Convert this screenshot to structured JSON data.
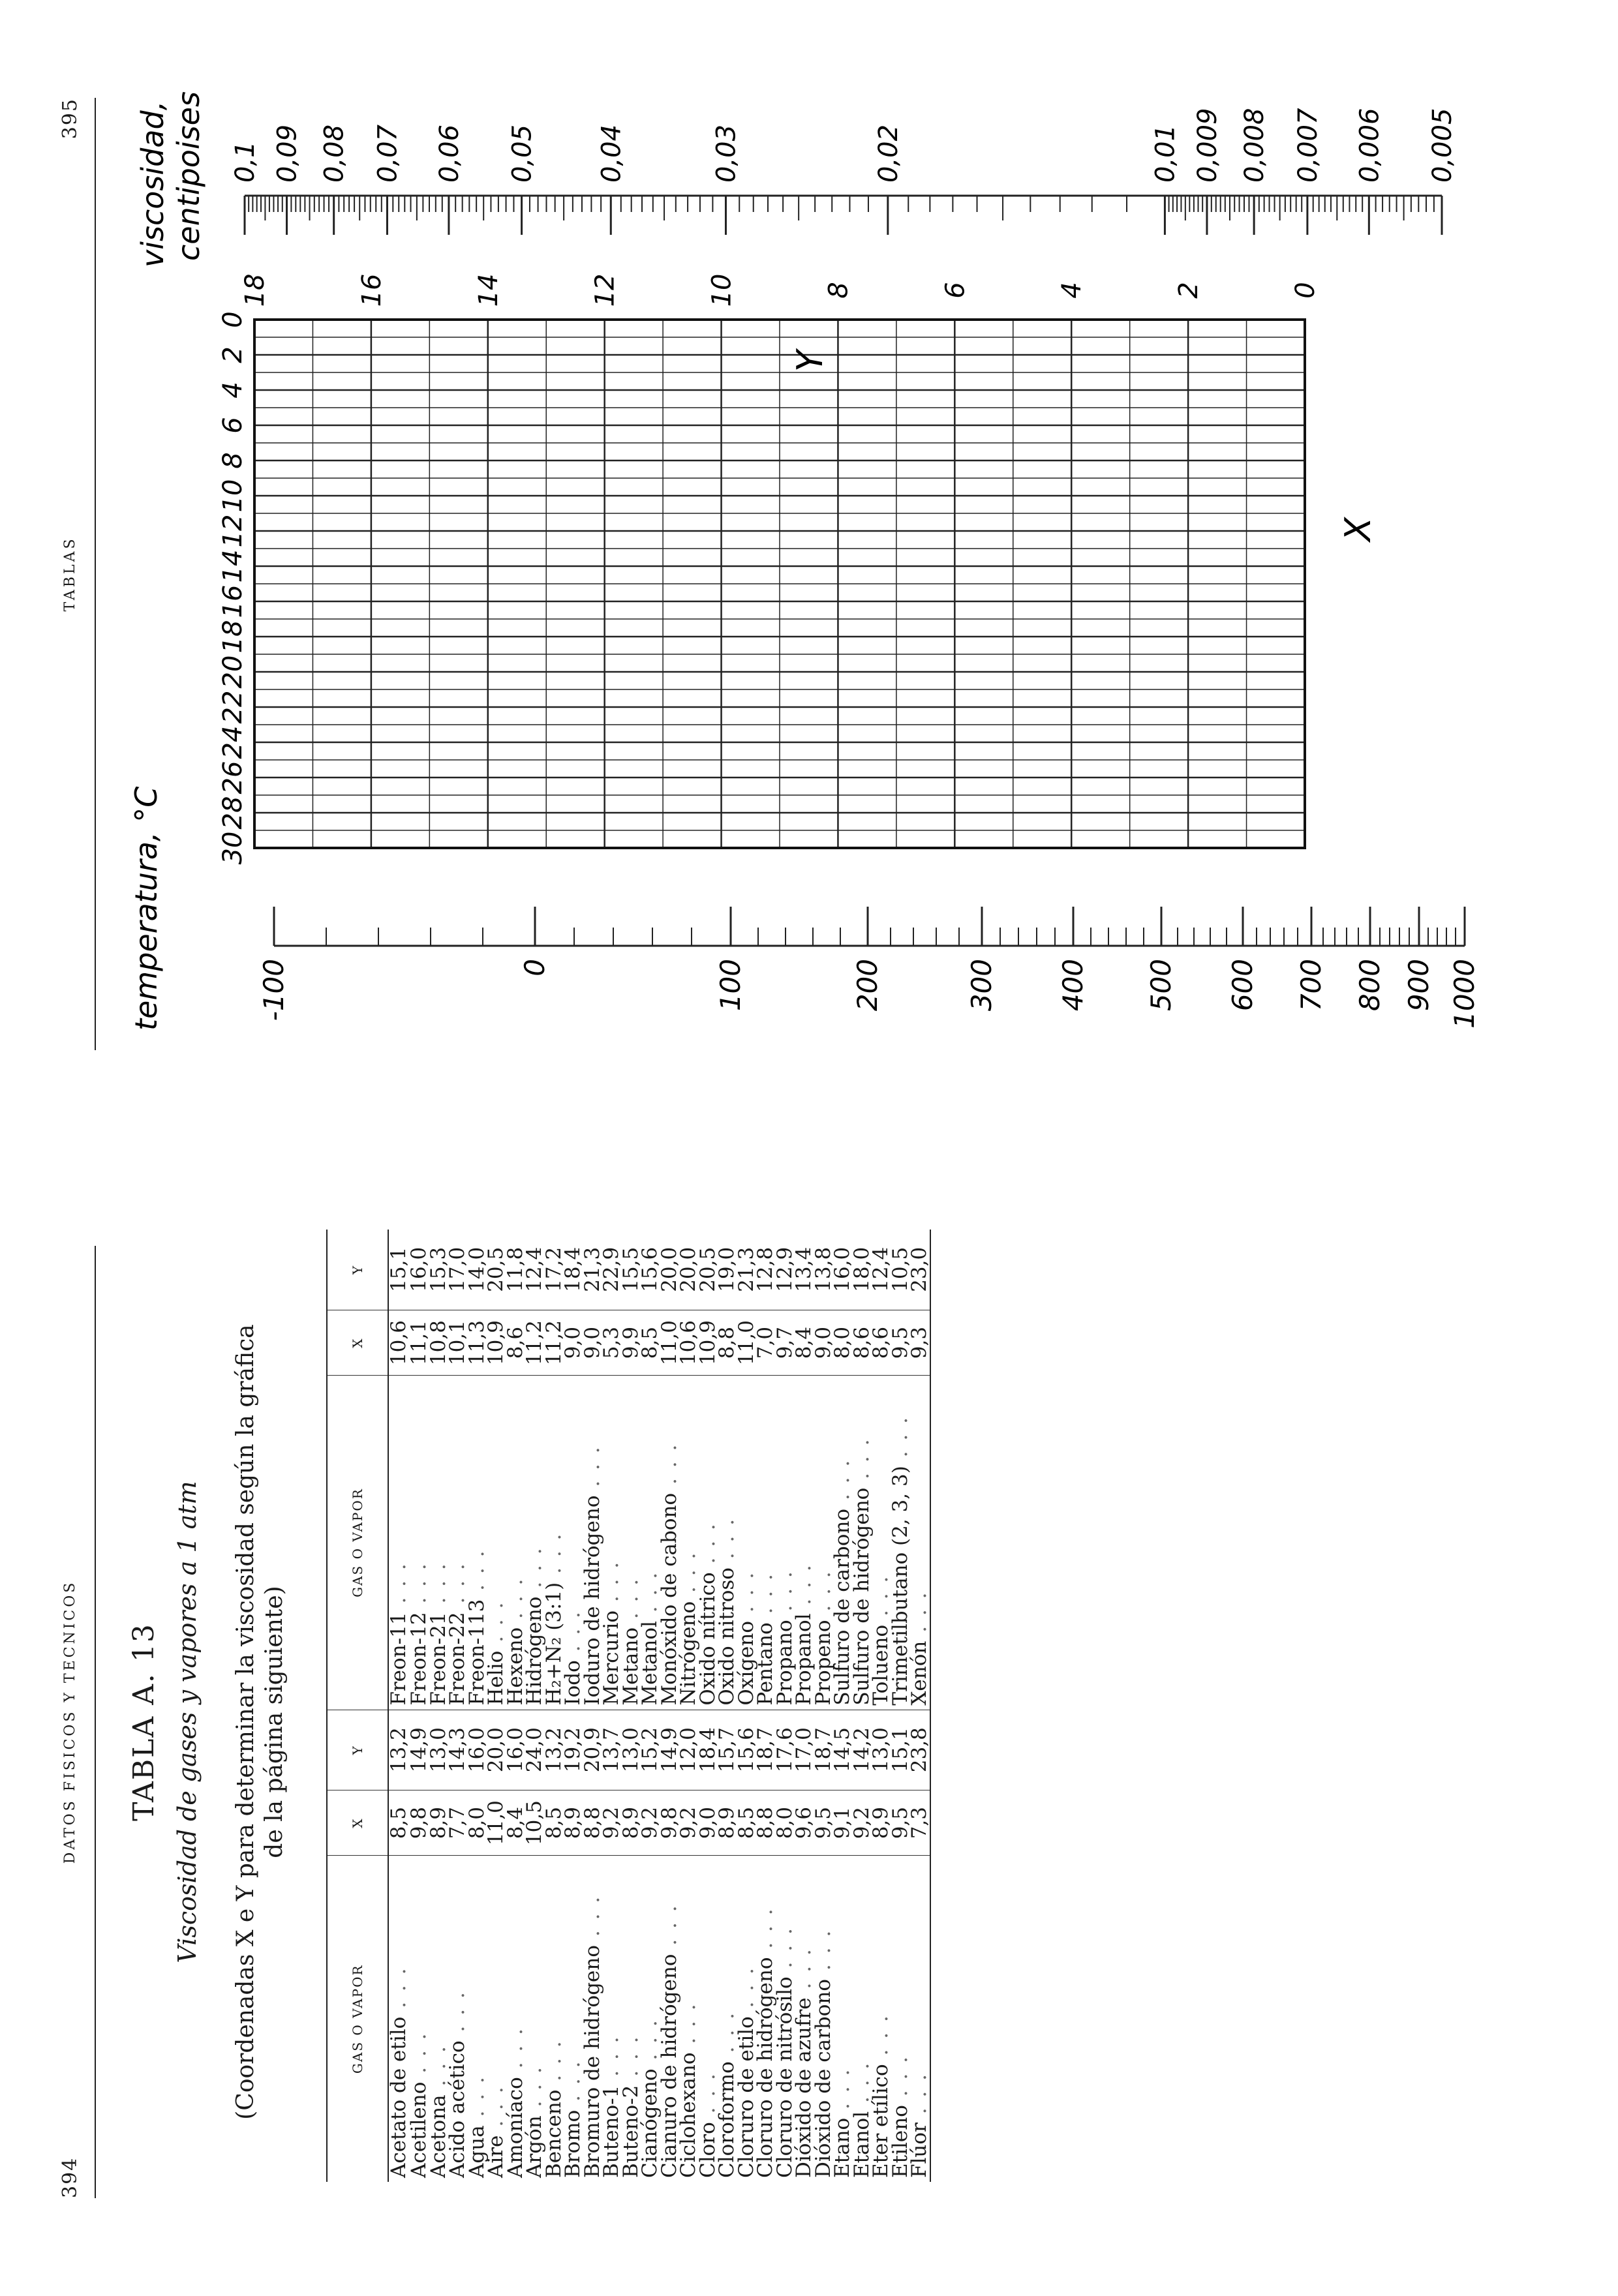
{
  "right_page": {
    "page_number": "395",
    "running_title": "TABLAS",
    "nomogram": {
      "temperature_axis": {
        "label": "temperatura, °C",
        "ticks": [
          "-100",
          "0",
          "100",
          "200",
          "300",
          "400",
          "500",
          "600",
          "700",
          "800",
          "900",
          "1000"
        ]
      },
      "viscosity_axis": {
        "label_line1": "viscosidad,",
        "label_line2": "centipoises",
        "ticks": [
          "0,1",
          "0,09",
          "0,08",
          "0,07",
          "0,06",
          "0,05",
          "0,04",
          "0,03",
          "0,02",
          "0,01",
          "0,009",
          "0,008",
          "0,007",
          "0,006",
          "0,005"
        ]
      },
      "grid": {
        "x_label": "X",
        "y_label": "Y",
        "x_ticks": [
          "0",
          "2",
          "4",
          "6",
          "8",
          "10",
          "12",
          "14",
          "16",
          "18"
        ],
        "y_ticks": [
          "0",
          "2",
          "4",
          "6",
          "8",
          "10",
          "12",
          "14",
          "16",
          "18",
          "20",
          "22",
          "24",
          "26",
          "28",
          "30"
        ]
      }
    }
  },
  "left_page": {
    "page_number": "394",
    "running_title": "DATOS FISICOS Y TECNICOS",
    "table_title": "TABLA A. 13",
    "table_subtitle": "Viscosidad de gases y vapores a 1 atm",
    "table_note_line1": "(Coordenadas X e Y para determinar la viscosidad según la gráfica",
    "table_note_line2": "de la página siguiente)",
    "headers": {
      "name": "GAS O VAPOR",
      "x": "X",
      "y": "Y"
    },
    "rows": [
      {
        "a": "Acetato de etilo",
        "ax": "8,5",
        "ay": "13,2",
        "b": "Freon-11",
        "bx": "10,6",
        "by": "15,1"
      },
      {
        "a": "Acetileno",
        "ax": "9,8",
        "ay": "14,9",
        "b": "Freon-12",
        "bx": "11,1",
        "by": "16,0"
      },
      {
        "a": "Acetona",
        "ax": "8,9",
        "ay": "13,0",
        "b": "Freon-21",
        "bx": "10,8",
        "by": "15,3"
      },
      {
        "a": "Acido acético",
        "ax": "7,7",
        "ay": "14,3",
        "b": "Freon-22",
        "bx": "10,1",
        "by": "17,0"
      },
      {
        "a": "Agua",
        "ax": "8,0",
        "ay": "16,0",
        "b": "Freon-113",
        "bx": "11,3",
        "by": "14,0"
      },
      {
        "a": "Aire",
        "ax": "11,0",
        "ay": "20,0",
        "b": "Helio",
        "bx": "10,9",
        "by": "20,5"
      },
      {
        "a": "Amoníaco",
        "ax": "8,4",
        "ay": "16,0",
        "b": "Hexeno",
        "bx": "8,6",
        "by": "11,8"
      },
      {
        "a": "Argón",
        "ax": "10,5",
        "ay": "24,0",
        "b": "Hidrógeno",
        "bx": "11,2",
        "by": "12,4"
      },
      {
        "a": "Benceno",
        "ax": "8,5",
        "ay": "13,2",
        "b": "H₂+N₂ (3:1)",
        "bx": "11,2",
        "by": "17,2"
      },
      {
        "a": "Bromo",
        "ax": "8,9",
        "ay": "19,2",
        "b": "Iodo",
        "bx": "9,0",
        "by": "18,4"
      },
      {
        "a": "Bromuro de hidrógeno",
        "ax": "8,8",
        "ay": "20,9",
        "b": "Ioduro de hidrógeno",
        "bx": "9,0",
        "by": "21,3"
      },
      {
        "a": "Buteno-1",
        "ax": "9,2",
        "ay": "13,7",
        "b": "Mercurio",
        "bx": "5,3",
        "by": "22,9"
      },
      {
        "a": "Buteno-2",
        "ax": "8,9",
        "ay": "13,0",
        "b": "Metano",
        "bx": "9,9",
        "by": "15,5"
      },
      {
        "a": "Cianógeno",
        "ax": "9,2",
        "ay": "15,2",
        "b": "Metanol",
        "bx": "8,5",
        "by": "15,6"
      },
      {
        "a": "Cianuro de hidrógeno",
        "ax": "9,8",
        "ay": "14,9",
        "b": "Monóxido de cabono",
        "bx": "11,0",
        "by": "20,0"
      },
      {
        "a": "Ciclohexano",
        "ax": "9,2",
        "ay": "12,0",
        "b": "Nitrógeno",
        "bx": "10,6",
        "by": "20,0"
      },
      {
        "a": "Cloro",
        "ax": "9,0",
        "ay": "18,4",
        "b": "Oxido nítrico",
        "bx": "10,9",
        "by": "20,5"
      },
      {
        "a": "Cloroformo",
        "ax": "8,9",
        "ay": "15,7",
        "b": "Oxido nitroso",
        "bx": "8,8",
        "by": "19,0"
      },
      {
        "a": "Cloruro de etilo",
        "ax": "8,5",
        "ay": "15,6",
        "b": "Oxígeno",
        "bx": "11,0",
        "by": "21,3"
      },
      {
        "a": "Cloruro de hidrógeno",
        "ax": "8,8",
        "ay": "18,7",
        "b": "Pentano",
        "bx": "7,0",
        "by": "12,8"
      },
      {
        "a": "Cloruro de nitrósilo",
        "ax": "8,0",
        "ay": "17,6",
        "b": "Propano",
        "bx": "9,7",
        "by": "12,9"
      },
      {
        "a": "Dióxido de azufre",
        "ax": "9,6",
        "ay": "17,0",
        "b": "Propanol",
        "bx": "8,4",
        "by": "13,4"
      },
      {
        "a": "Dióxido de carbono",
        "ax": "9,5",
        "ay": "18,7",
        "b": "Propeno",
        "bx": "9,0",
        "by": "13,8"
      },
      {
        "a": "Etano",
        "ax": "9,1",
        "ay": "14,5",
        "b": "Sulfuro de carbono",
        "bx": "8,0",
        "by": "16,0"
      },
      {
        "a": "Etanol",
        "ax": "9,2",
        "ay": "14,2",
        "b": "Sulfuro de hidrógeno",
        "bx": "8,6",
        "by": "18,0"
      },
      {
        "a": "Eter etílico",
        "ax": "8,9",
        "ay": "13,0",
        "b": "Tolueno",
        "bx": "8,6",
        "by": "12,4"
      },
      {
        "a": "Etileno",
        "ax": "9,5",
        "ay": "15,1",
        "b": "Trimetilbutano (2, 3, 3)",
        "bx": "9,5",
        "by": "10,5"
      },
      {
        "a": "Flúor",
        "ax": "7,3",
        "ay": "23,8",
        "b": "Xenón",
        "bx": "9,3",
        "by": "23,0"
      }
    ]
  }
}
